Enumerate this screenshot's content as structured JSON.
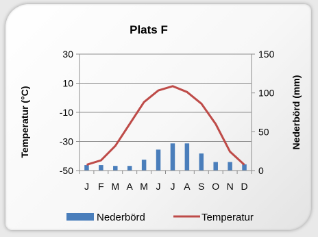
{
  "chart_data": {
    "type": "bar+line",
    "title": "Plats F",
    "categories": [
      "J",
      "F",
      "M",
      "A",
      "M",
      "J",
      "J",
      "A",
      "S",
      "O",
      "N",
      "D"
    ],
    "series": [
      {
        "name": "Nederbörd",
        "type": "bar",
        "axis": "right",
        "color": "#4a7ebb",
        "values": [
          7,
          7,
          6,
          6,
          14,
          27,
          35,
          35,
          22,
          11,
          11,
          8
        ]
      },
      {
        "name": "Temperatur",
        "type": "line",
        "axis": "left",
        "color": "#be4b48",
        "values": [
          -46,
          -43,
          -33,
          -18,
          -3,
          5,
          8,
          4,
          -4,
          -18,
          -37,
          -46
        ]
      }
    ],
    "y_left": {
      "label": "Temperatur (°C)",
      "min": -50,
      "max": 30,
      "ticks": [
        30,
        10,
        -10,
        -30,
        -50
      ]
    },
    "y_right": {
      "label": "Nederbörd (mm)",
      "min": 0,
      "max": 150,
      "ticks": [
        150,
        100,
        50,
        0
      ]
    },
    "grid": "horizontal",
    "legend": "bottom"
  }
}
